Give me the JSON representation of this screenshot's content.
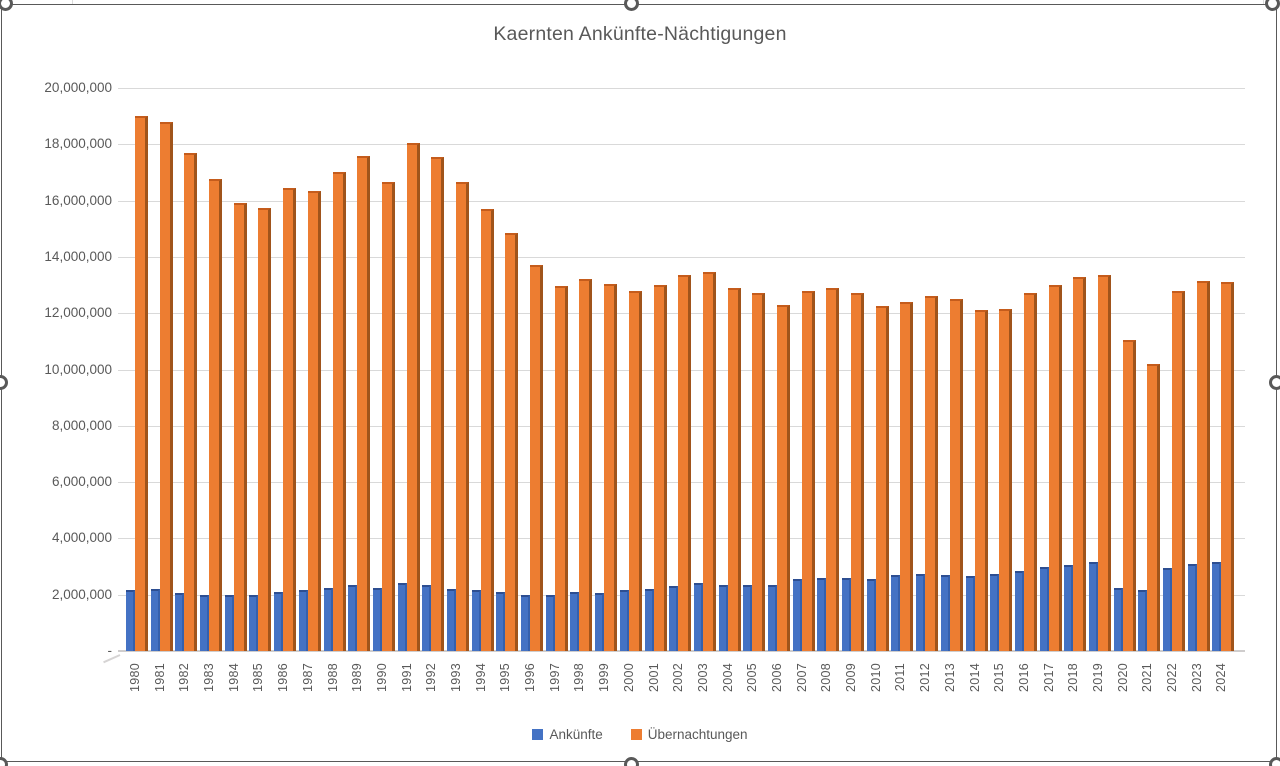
{
  "title": "Kaernten Ankünfte-Nächtigungen",
  "chart_data": {
    "type": "bar",
    "title": "Kaernten Ankünfte-Nächtigungen",
    "categories": [
      "1980",
      "1981",
      "1982",
      "1983",
      "1984",
      "1985",
      "1986",
      "1987",
      "1988",
      "1989",
      "1990",
      "1991",
      "1992",
      "1993",
      "1994",
      "1995",
      "1996",
      "1997",
      "1998",
      "1999",
      "2000",
      "2001",
      "2002",
      "2003",
      "2004",
      "2005",
      "2006",
      "2007",
      "2008",
      "2009",
      "2010",
      "2011",
      "2012",
      "2013",
      "2014",
      "2015",
      "2016",
      "2017",
      "2018",
      "2019",
      "2020",
      "2021",
      "2022",
      "2023",
      "2024"
    ],
    "series": [
      {
        "name": "Ankünfte",
        "color": "#4472C4",
        "values": [
          2150000,
          2200000,
          2050000,
          2000000,
          2000000,
          2000000,
          2100000,
          2150000,
          2250000,
          2350000,
          2250000,
          2400000,
          2350000,
          2200000,
          2150000,
          2100000,
          2000000,
          2000000,
          2100000,
          2050000,
          2150000,
          2200000,
          2300000,
          2400000,
          2350000,
          2350000,
          2350000,
          2550000,
          2600000,
          2600000,
          2550000,
          2700000,
          2750000,
          2700000,
          2650000,
          2750000,
          2850000,
          3000000,
          3050000,
          3150000,
          2250000,
          2150000,
          2950000,
          3100000,
          3150000
        ]
      },
      {
        "name": "Übernachtungen",
        "color": "#ED7D31",
        "values": [
          19000000,
          18800000,
          17700000,
          16750000,
          15900000,
          15750000,
          16450000,
          16350000,
          17000000,
          17600000,
          16650000,
          18050000,
          17550000,
          16650000,
          15700000,
          14850000,
          13700000,
          12950000,
          13200000,
          13050000,
          12800000,
          13000000,
          13350000,
          13450000,
          12900000,
          12700000,
          12300000,
          12800000,
          12900000,
          12700000,
          12250000,
          12400000,
          12600000,
          12500000,
          12100000,
          12150000,
          12700000,
          13000000,
          13300000,
          13350000,
          11050000,
          10200000,
          12800000,
          13150000,
          13100000
        ]
      }
    ],
    "xlabel": "",
    "ylabel": "",
    "ylim": [
      0,
      20000000
    ],
    "ytick_step": 2000000,
    "ytick_labels": [
      "20,000,000",
      "18,000,000",
      "16,000,000",
      "14,000,000",
      "12,000,000",
      "10,000,000",
      "8,000,000",
      "6,000,000",
      "4,000,000",
      "2,000,000",
      "-"
    ],
    "grid": true,
    "legend_position": "bottom"
  },
  "colors": {
    "text": "#595959",
    "gridline": "#D9D9D9",
    "chart_border": "#595959"
  }
}
